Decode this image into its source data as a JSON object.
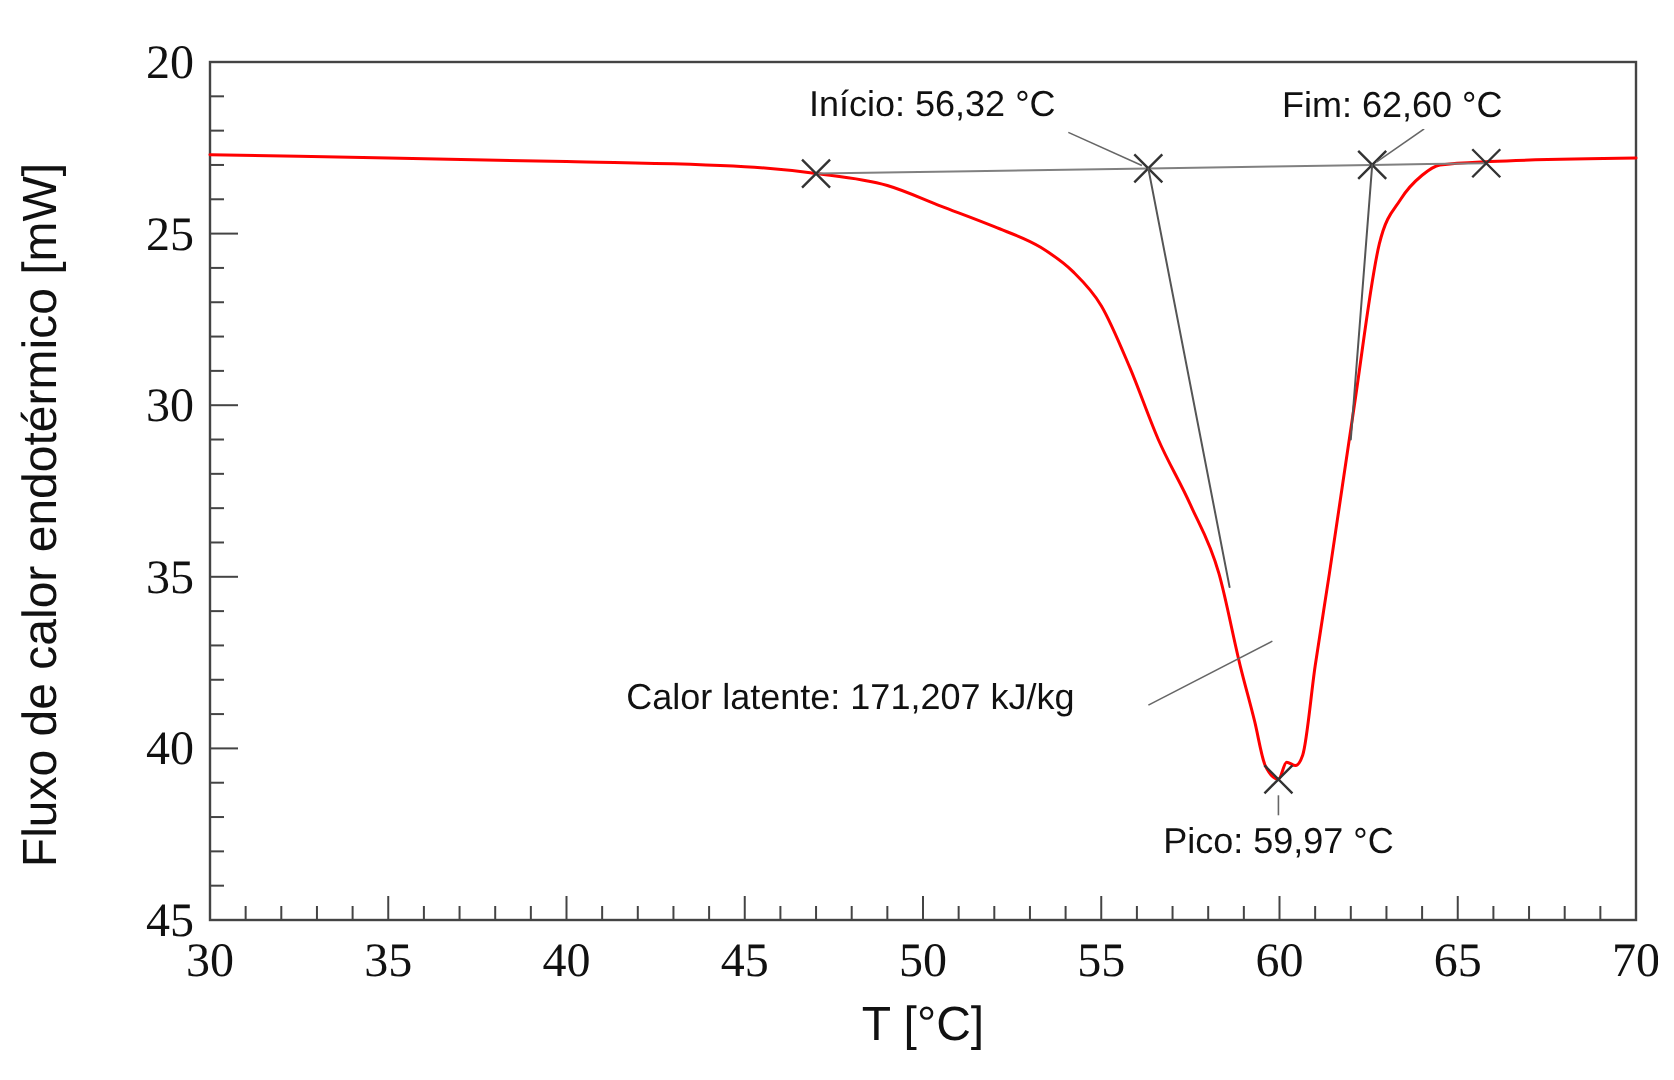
{
  "chart_data": {
    "type": "line",
    "xlabel": "T [°C]",
    "ylabel": "Fluxo de calor endotérmico [mW]",
    "xlim": [
      30,
      70
    ],
    "ylim": [
      45,
      20
    ],
    "xticks": [
      30,
      {
        "value": 31,
        "label": null
      },
      {
        "value": 32,
        "label": null
      },
      {
        "value": 33,
        "label": null
      },
      {
        "value": 34,
        "label": null
      },
      35,
      {
        "value": 36,
        "label": null
      },
      {
        "value": 37,
        "label": null
      },
      {
        "value": 38,
        "label": null
      },
      {
        "value": 39,
        "label": null
      },
      40,
      {
        "value": 41,
        "label": null
      },
      {
        "value": 42,
        "label": null
      },
      {
        "value": 43,
        "label": null
      },
      {
        "value": 44,
        "label": null
      },
      45,
      {
        "value": 46,
        "label": null
      },
      {
        "value": 47,
        "label": null
      },
      {
        "value": 48,
        "label": null
      },
      {
        "value": 49,
        "label": null
      },
      50,
      {
        "value": 51,
        "label": null
      },
      {
        "value": 52,
        "label": null
      },
      {
        "value": 53,
        "label": null
      },
      {
        "value": 54,
        "label": null
      },
      55,
      {
        "value": 56,
        "label": null
      },
      {
        "value": 57,
        "label": null
      },
      {
        "value": 58,
        "label": null
      },
      {
        "value": 59,
        "label": null
      },
      60,
      {
        "value": 61,
        "label": null
      },
      {
        "value": 62,
        "label": null
      },
      {
        "value": 63,
        "label": null
      },
      {
        "value": 64,
        "label": null
      },
      65,
      {
        "value": 66,
        "label": null
      },
      {
        "value": 67,
        "label": null
      },
      {
        "value": 68,
        "label": null
      },
      {
        "value": 69,
        "label": null
      },
      70
    ],
    "yticks": [
      20,
      {
        "value": 21,
        "label": null
      },
      {
        "value": 22,
        "label": null
      },
      {
        "value": 23,
        "label": null
      },
      {
        "value": 24,
        "label": null
      },
      25,
      {
        "value": 26,
        "label": null
      },
      {
        "value": 27,
        "label": null
      },
      {
        "value": 28,
        "label": null
      },
      {
        "value": 29,
        "label": null
      },
      30,
      {
        "value": 31,
        "label": null
      },
      {
        "value": 32,
        "label": null
      },
      {
        "value": 33,
        "label": null
      },
      {
        "value": 34,
        "label": null
      },
      35,
      {
        "value": 36,
        "label": null
      },
      {
        "value": 37,
        "label": null
      },
      {
        "value": 38,
        "label": null
      },
      {
        "value": 39,
        "label": null
      },
      40,
      {
        "value": 41,
        "label": null
      },
      {
        "value": 42,
        "label": null
      },
      {
        "value": 43,
        "label": null
      },
      {
        "value": 44,
        "label": null
      },
      45
    ],
    "line_style": "solid",
    "series": [
      {
        "color": "#ff0000",
        "marker": "none",
        "x": [
          30,
          35,
          40,
          45,
          47,
          49,
          50.5,
          52,
          53.3,
          54.2,
          55,
          55.8,
          56.6,
          57.5,
          58.3,
          58.9,
          59.3,
          59.6,
          59.97,
          60.2,
          60.45,
          60.65,
          61.0,
          61.4,
          62.1,
          62.8,
          63.4,
          64.0,
          64.5,
          65.9,
          70
        ],
        "values": [
          22.7,
          22.8,
          22.9,
          23.05,
          23.25,
          23.6,
          24.2,
          24.8,
          25.4,
          26.1,
          27.1,
          28.9,
          31.0,
          32.9,
          34.9,
          37.6,
          39.2,
          40.5,
          40.9,
          40.4,
          40.5,
          40.2,
          37.6,
          34.9,
          30.0,
          25.3,
          24.0,
          23.3,
          23.0,
          22.9,
          22.8
        ]
      },
      {
        "color": "#808080",
        "marker": "cross",
        "x": [
          47,
          56.32,
          62.6,
          65.8
        ],
        "values": [
          23.25,
          23.1,
          23.0,
          22.95
        ]
      },
      {
        "color": "#555555",
        "marker": "none",
        "x": [
          56.32,
          58.6
        ],
        "values": [
          23.1,
          35.3
        ]
      },
      {
        "color": "#555555",
        "marker": "none",
        "x": [
          62.6,
          62.0
        ],
        "values": [
          23.0,
          31.0
        ]
      },
      {
        "type": "scatter",
        "color": "#333333",
        "marker": "cross",
        "x": [
          59.97
        ],
        "values": [
          40.9
        ]
      }
    ],
    "annotations": [
      {
        "text": "Início: 56,32 °C",
        "x": 56.32,
        "y": 23.1
      },
      {
        "text": "Fim: 62,60 °C",
        "x": 62.6,
        "y": 23.0
      },
      "Calor latente: 171,207 kJ/kg",
      {
        "text": "Pico: 59,97 °C",
        "x": 59.97,
        "y": 40.9
      }
    ]
  }
}
